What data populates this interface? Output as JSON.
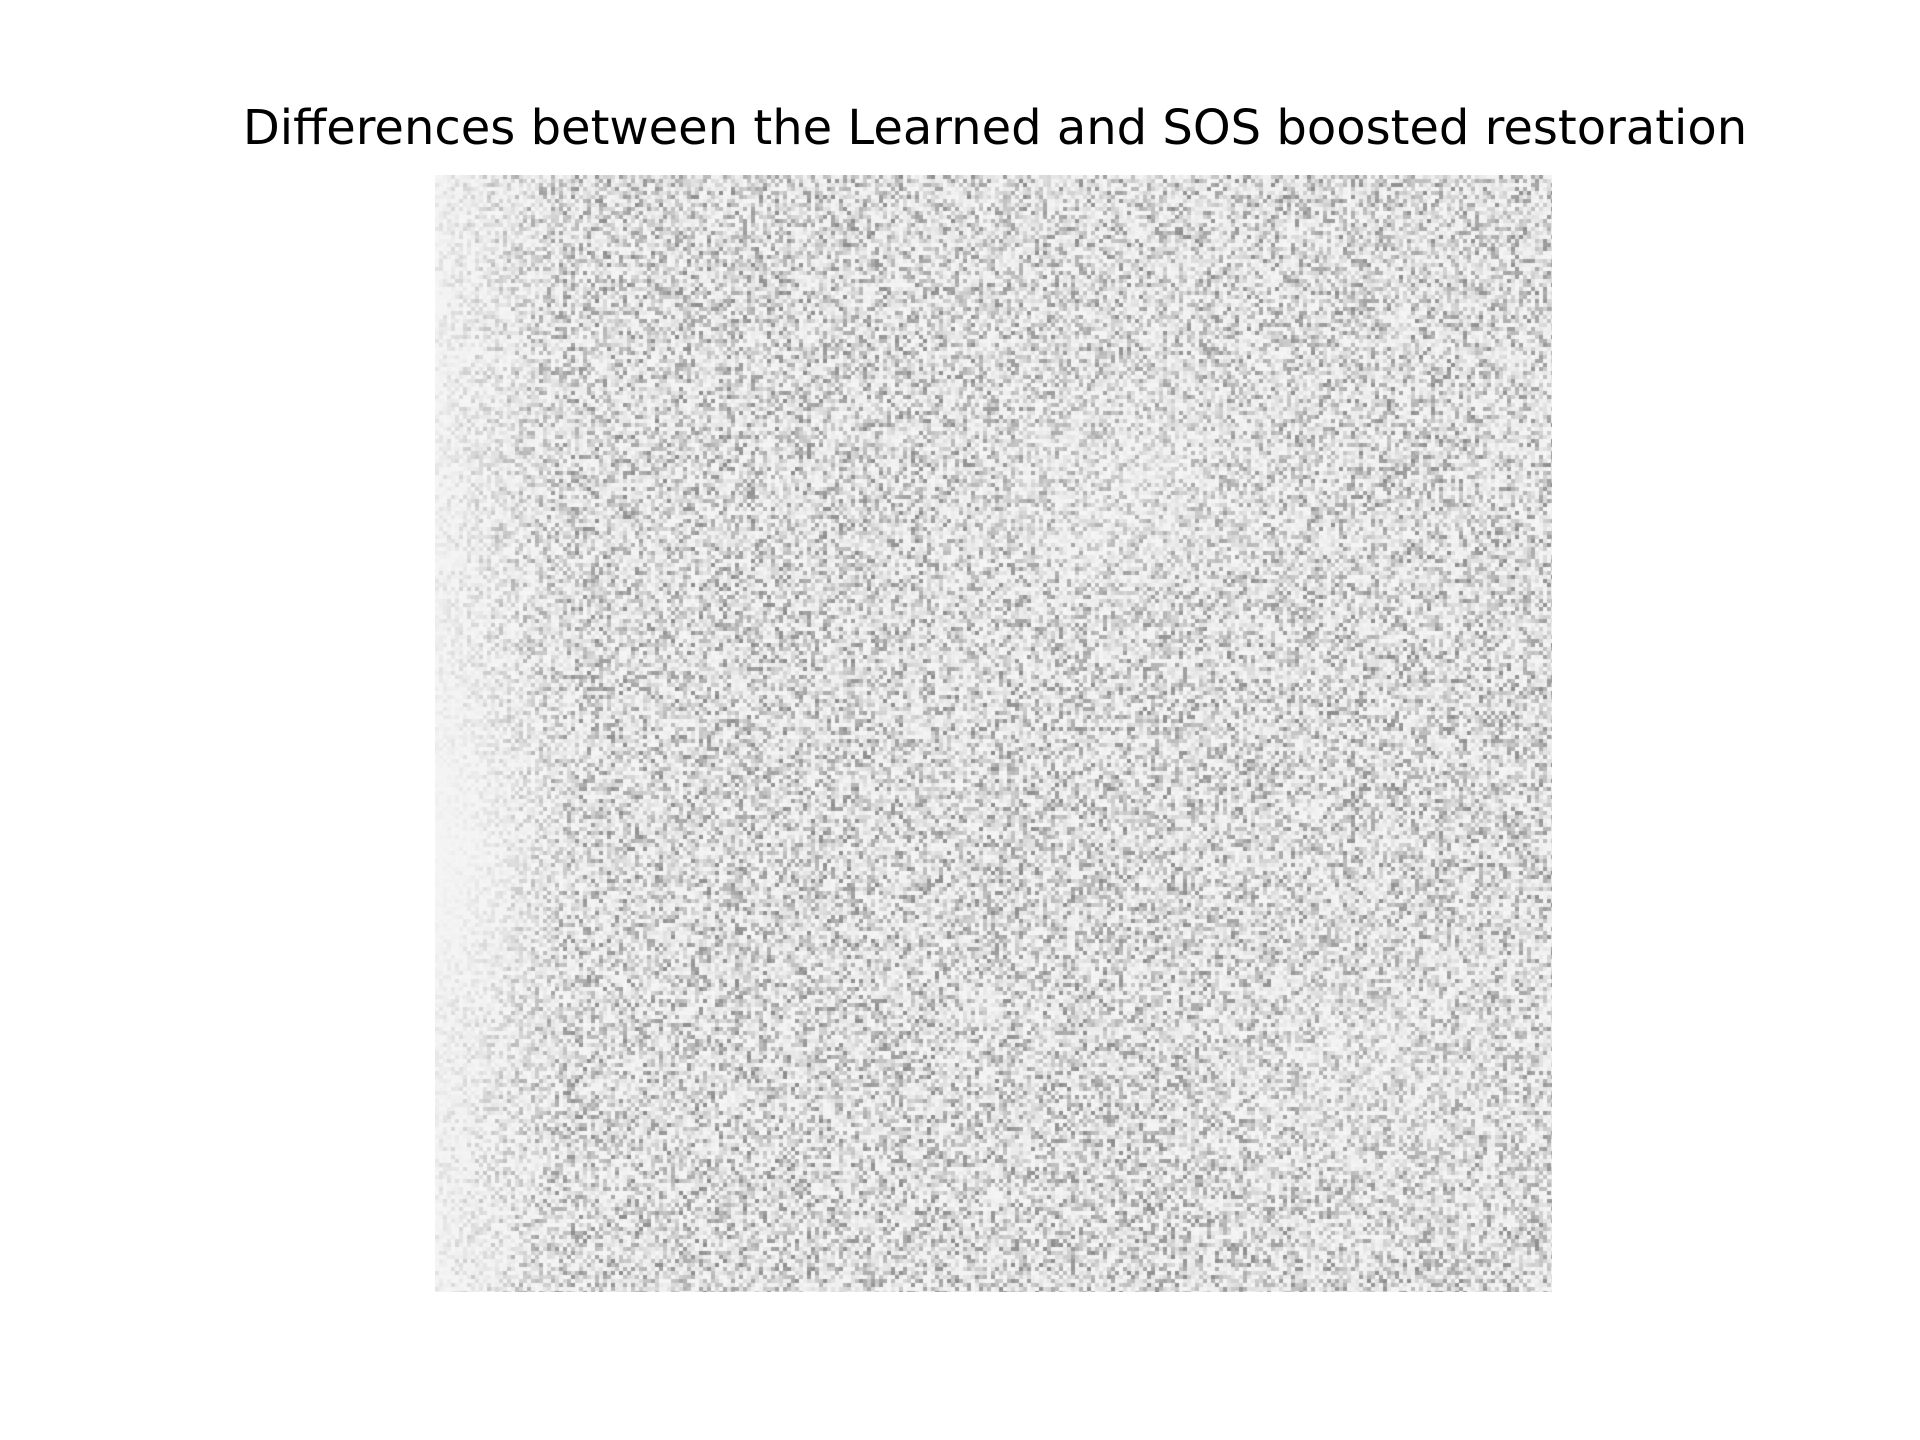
{
  "figure": {
    "title": "Differences between the Learned and SOS boosted restoration"
  },
  "image": {
    "description_colormap": "grayscale",
    "background_color": "#ffffff",
    "noise_color": "#888888"
  }
}
